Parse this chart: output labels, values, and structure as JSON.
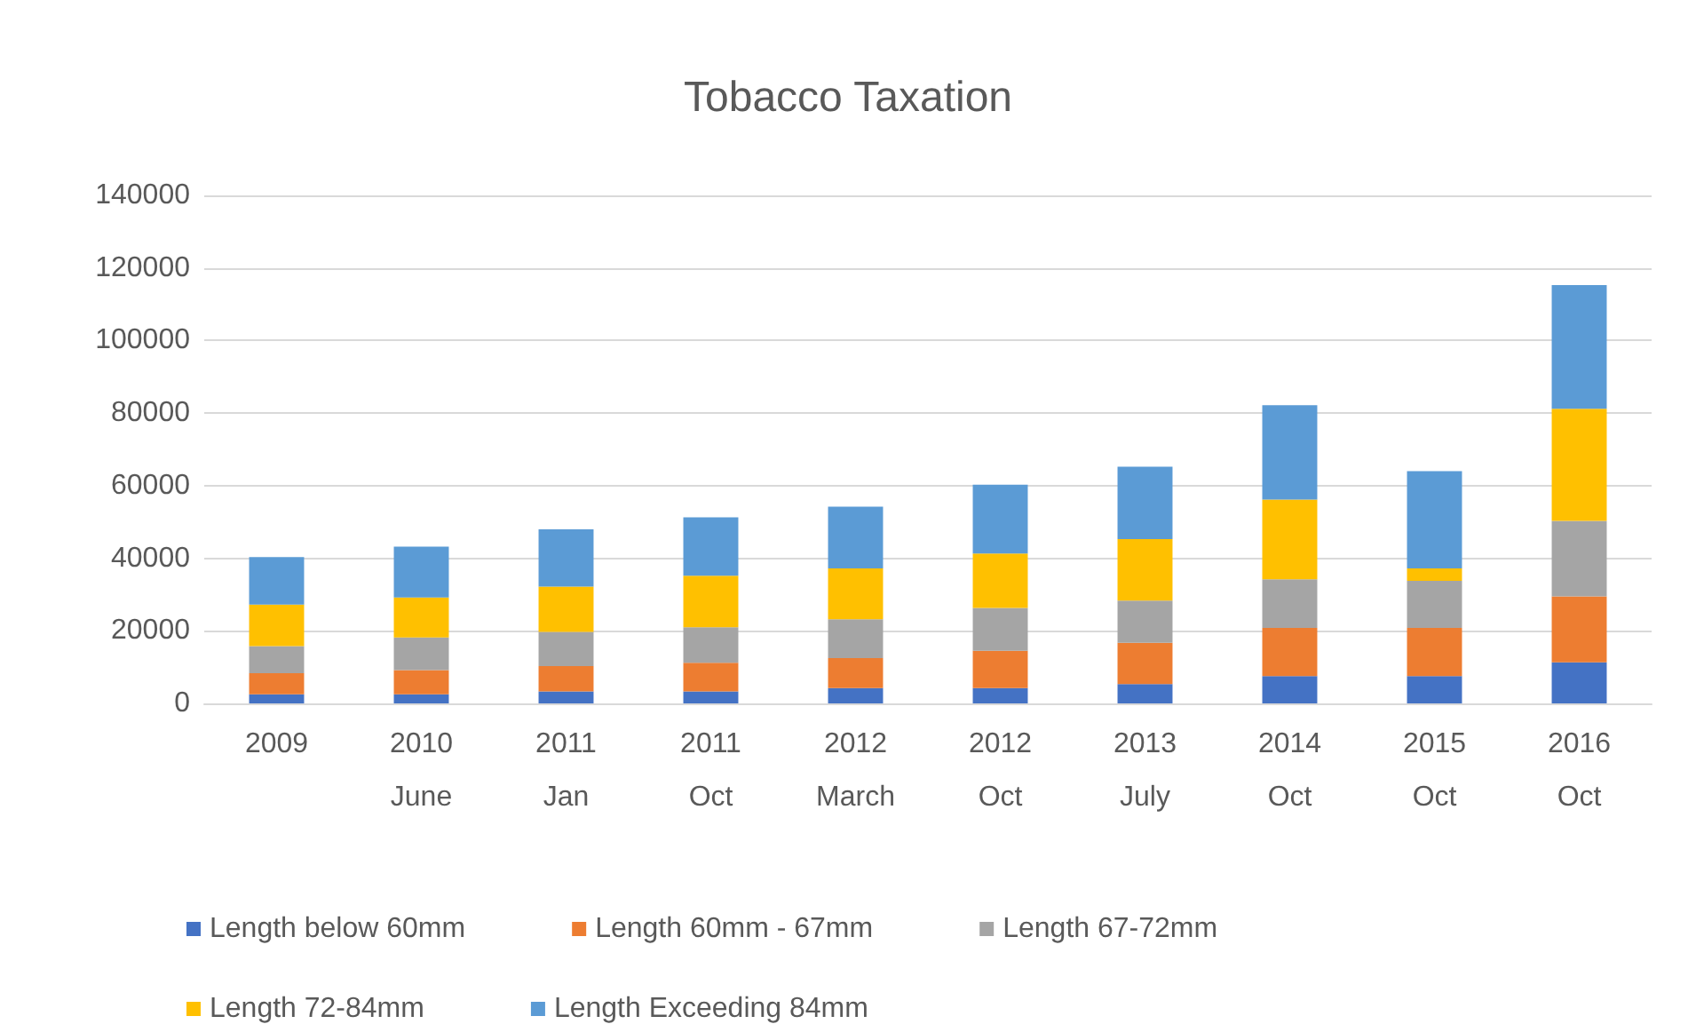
{
  "chart_data": {
    "type": "bar",
    "title": "Tobacco Taxation",
    "stacked": true,
    "categories": [
      "2009",
      "2010\nJune",
      "2011\nJan",
      "2011\nOct",
      "2012\nMarch",
      "2012\nOct",
      "2013\nJuly",
      "2014\nOct",
      "2015\nOct",
      "2016\nOct"
    ],
    "series": [
      {
        "name": "Length below 60mm",
        "color": "#4472c4",
        "values": [
          2500,
          2500,
          3300,
          3300,
          4200,
          4200,
          5300,
          7500,
          7500,
          11300
        ]
      },
      {
        "name": "Length 60mm - 67mm",
        "color": "#ed7d31",
        "values": [
          5800,
          6700,
          7000,
          7900,
          8300,
          10300,
          11400,
          13300,
          13300,
          18200
        ]
      },
      {
        "name": "Length 67-72mm",
        "color": "#a5a5a5",
        "values": [
          7500,
          9000,
          9400,
          9800,
          10700,
          11800,
          11600,
          13400,
          13000,
          20800
        ]
      },
      {
        "name": "Length 72-84mm",
        "color": "#ffc000",
        "values": [
          11400,
          11000,
          12500,
          14200,
          14000,
          15000,
          17000,
          22000,
          3400,
          30900
        ]
      },
      {
        "name": "Length Exceeding 84mm",
        "color": "#5b9bd5",
        "values": [
          13100,
          14000,
          15800,
          16100,
          17000,
          19000,
          19900,
          26000,
          26800,
          34100
        ]
      }
    ],
    "ylim": [
      0,
      140000
    ],
    "yticks": [
      0,
      20000,
      40000,
      60000,
      80000,
      100000,
      120000,
      140000
    ],
    "grid": "y",
    "legend": "bottom"
  }
}
